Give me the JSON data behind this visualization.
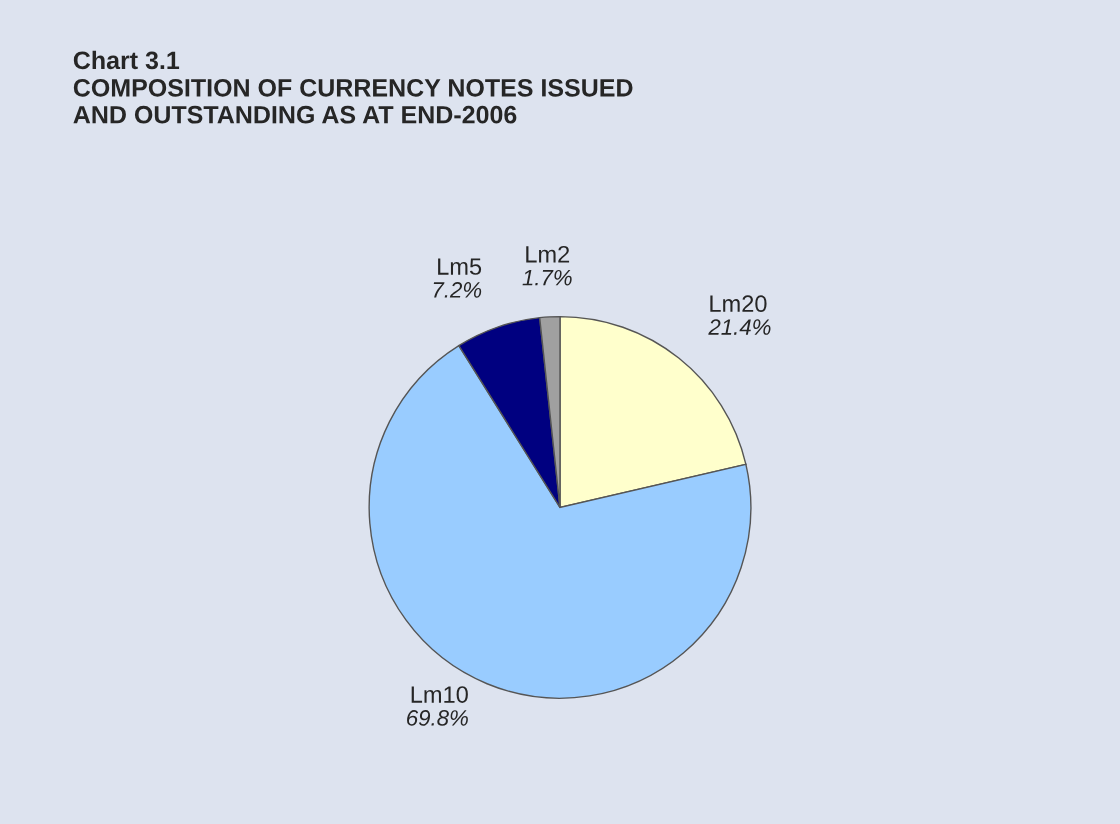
{
  "chart_data": {
    "type": "pie",
    "title": "Chart 3.1",
    "subtitle": "COMPOSITION OF CURRENCY NOTES ISSUED\nAND OUTSTANDING AS AT END-2006",
    "categories": [
      "Lm20",
      "Lm10",
      "Lm5",
      "Lm2"
    ],
    "values": [
      21.4,
      69.8,
      7.2,
      1.7
    ],
    "value_labels": [
      "21.4%",
      "69.8%",
      "7.2%",
      "1.7%"
    ],
    "colors": [
      "#ffffcc",
      "#99ccff",
      "#000080",
      "#a0a0a0"
    ]
  }
}
